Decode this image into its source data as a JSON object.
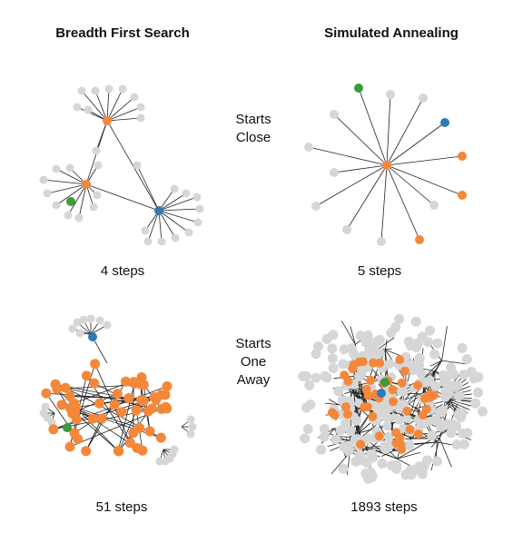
{
  "titles": {
    "left": "Breadth First Search",
    "right": "Simulated Annealing"
  },
  "rows": [
    {
      "label": [
        "Starts",
        "Close"
      ]
    },
    {
      "label": [
        "Starts",
        "One",
        "Away"
      ]
    }
  ],
  "panels": {
    "bfs_close": {
      "steps_text": "4 steps"
    },
    "sa_close": {
      "steps_text": "5 steps"
    },
    "bfs_far": {
      "steps_text": "51 steps"
    },
    "sa_far": {
      "steps_text": "1893 steps"
    }
  },
  "colors": {
    "visited": "#f5873a",
    "unvisited": "#d6d6d6",
    "start": "#2f7ab5",
    "goal": "#3a9c3a",
    "edge": "#222222"
  }
}
